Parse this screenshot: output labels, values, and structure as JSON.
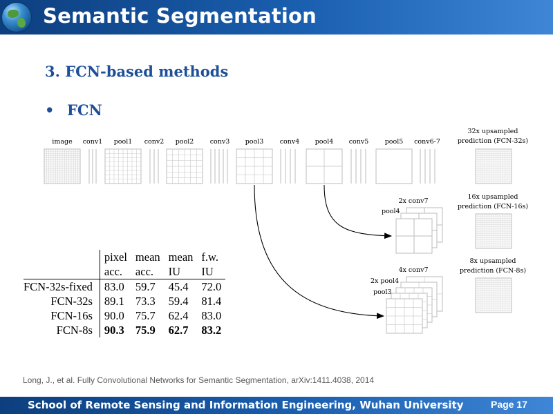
{
  "header": {
    "title": "Semantic Segmentation",
    "logo_icon": "globe-icon"
  },
  "section_heading": "3. FCN-based methods",
  "bullet": {
    "symbol": "•",
    "text": "FCN"
  },
  "figure": {
    "layers": [
      "image",
      "conv1",
      "pool1",
      "conv2",
      "pool2",
      "conv3",
      "pool3",
      "conv4",
      "pool4",
      "conv5",
      "pool5",
      "conv6-7"
    ],
    "pred32": [
      "32x upsampled",
      "prediction (FCN-32s)"
    ],
    "pred16": [
      "16x upsampled",
      "prediction (FCN-16s)"
    ],
    "pred8": [
      "8x upsampled",
      "prediction (FCN-8s)"
    ],
    "stack16_labels": {
      "top": "2x conv7",
      "side": "pool4"
    },
    "stack8_labels": {
      "top": "4x conv7",
      "side1": "2x pool4",
      "side2": "pool3"
    }
  },
  "table": {
    "header_row1": [
      "",
      "pixel",
      "mean",
      "mean",
      "f.w."
    ],
    "header_row2": [
      "",
      "acc.",
      "acc.",
      "IU",
      "IU"
    ],
    "rows": [
      {
        "name": "FCN-32s-fixed",
        "values": [
          "83.0",
          "59.7",
          "45.4",
          "72.0"
        ]
      },
      {
        "name": "FCN-32s",
        "values": [
          "89.1",
          "73.3",
          "59.4",
          "81.4"
        ]
      },
      {
        "name": "FCN-16s",
        "values": [
          "90.0",
          "75.7",
          "62.4",
          "83.0"
        ]
      },
      {
        "name": "FCN-8s",
        "values": [
          "90.3",
          "75.9",
          "62.7",
          "83.2"
        ],
        "bold": true
      }
    ]
  },
  "citation": "Long, J., et al. Fully Convolutional Networks for Semantic Segmentation, arXiv:1411.4038, 2014",
  "footer": {
    "text": "School of Remote Sensing and Information Engineering, Wuhan University",
    "page": "Page 17"
  },
  "colors": {
    "header_blue": "#1a5fb0",
    "heading_blue": "#1e4f9a"
  }
}
